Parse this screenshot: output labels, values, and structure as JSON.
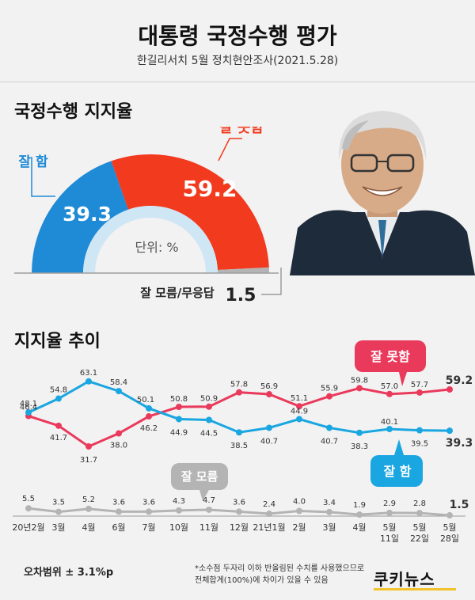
{
  "header": {
    "title": "대통령 국정수행 평가",
    "subtitle": "한길리서치 5월 정치현안조사(2021.5.28)"
  },
  "gauge": {
    "section_title": "국정수행 지지율",
    "good_label": "잘 함",
    "good_value": 39.3,
    "good_text": "39.3",
    "bad_label": "잘 못함",
    "bad_value": 59.2,
    "bad_text": "59.2",
    "unit_text": "단위: %",
    "dk_label": "잘 모름/무응답",
    "dk_value": 1.5,
    "dk_text": "1.5"
  },
  "colors": {
    "good": "#1f8ad6",
    "bad": "#f23a1f",
    "trend_good": "#1aa6e0",
    "trend_bad": "#ea3a5c",
    "dk": "#b4b4b4"
  },
  "chart_data": {
    "type": "line",
    "title": "지지율 추이",
    "x": [
      "20년2월",
      "3월",
      "4월",
      "6월",
      "7월",
      "10월",
      "11월",
      "12월",
      "21년1월",
      "2월",
      "3월",
      "4월",
      "5월 11일",
      "5월 22일",
      "5월 28일"
    ],
    "x_ticks": [
      [
        "20년2월"
      ],
      [
        "3월"
      ],
      [
        "4월"
      ],
      [
        "6월"
      ],
      [
        "7월"
      ],
      [
        "10월"
      ],
      [
        "11월"
      ],
      [
        "12월"
      ],
      [
        "21년1월"
      ],
      [
        "2월"
      ],
      [
        "3월"
      ],
      [
        "4월"
      ],
      [
        "5월",
        "11일"
      ],
      [
        "5월",
        "22일"
      ],
      [
        "5월",
        "28일"
      ]
    ],
    "series": [
      {
        "name": "잘 못함",
        "color": "#ea3a5c",
        "values": [
          46.4,
          41.7,
          31.7,
          38.0,
          46.2,
          50.8,
          50.9,
          57.8,
          56.9,
          51.1,
          55.9,
          59.8,
          57.0,
          57.7,
          59.2
        ]
      },
      {
        "name": "잘 함",
        "color": "#1aa6e0",
        "values": [
          48.1,
          54.8,
          63.1,
          58.4,
          50.1,
          44.9,
          44.5,
          38.5,
          40.7,
          44.9,
          40.7,
          38.3,
          40.1,
          39.5,
          39.3
        ]
      },
      {
        "name": "잘 모름",
        "color": "#b4b4b4",
        "values": [
          5.5,
          3.5,
          5.2,
          3.6,
          3.6,
          4.3,
          4.7,
          3.6,
          2.4,
          4.0,
          3.4,
          1.9,
          2.9,
          2.8,
          1.5
        ]
      }
    ],
    "value_labels": {
      "잘 못함": [
        "46.4",
        "41.7",
        "31.7",
        "38.0",
        "46.2",
        "50.8",
        "50.9",
        "57.8",
        "56.9",
        "51.1",
        "55.9",
        "59.8",
        "57.0",
        "57.7",
        "59.2"
      ],
      "잘 함": [
        "48.1",
        "54.8",
        "63.1",
        "58.4",
        "50.1",
        "44.9",
        "44.5",
        "38.5",
        "40.7",
        "44.9",
        "40.7",
        "38.3",
        "40.1",
        "39.5",
        "39.3"
      ],
      "잘 모름": [
        "5.5",
        "3.5",
        "5.2",
        "3.6",
        "3.6",
        "4.3",
        "4.7",
        "3.6",
        "2.4",
        "4.0",
        "3.4",
        "1.9",
        "2.9",
        "2.8",
        "1.5"
      ]
    },
    "grid": false,
    "legend": "callout bubbles"
  },
  "footer": {
    "margin": "오차범위 ± 3.1%p",
    "note_line1": "*소수점 두자리 이하 반올림된 수치를 사용했으므로",
    "note_line2": "전체합계(100%)에 차이가 있을 수 있음",
    "logo": "쿠키뉴스"
  }
}
